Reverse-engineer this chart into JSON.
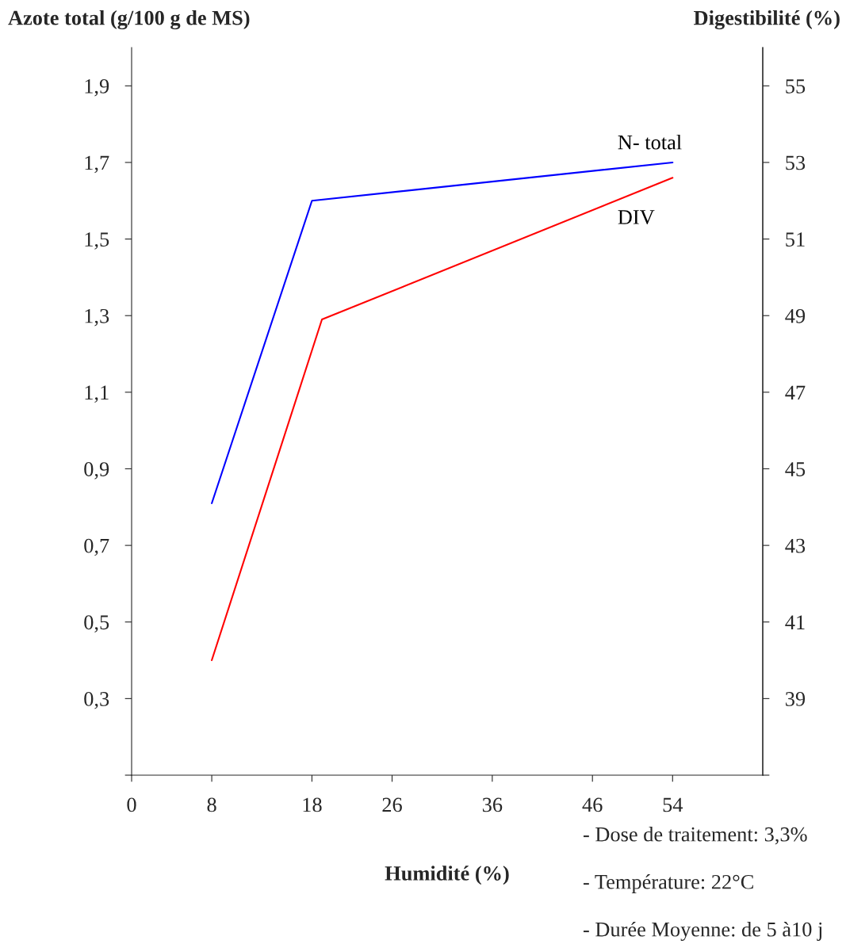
{
  "chart_data": {
    "type": "line",
    "xlabel": "Humidité (%)",
    "ylabel": "Azote total (g/100 g de MS)",
    "y2label": "Digestibilité (%)",
    "xlim": [
      0,
      63
    ],
    "xticks": [
      0,
      8,
      18,
      26,
      36,
      46,
      54
    ],
    "ylim": [
      0.1,
      2.0
    ],
    "yticks": [
      {
        "value": 0.1,
        "label": null
      },
      {
        "value": 0.3,
        "label": "0,3"
      },
      {
        "value": 0.5,
        "label": "0,5"
      },
      {
        "value": 0.7,
        "label": "0,7"
      },
      {
        "value": 0.9,
        "label": "0,9"
      },
      {
        "value": 1.1,
        "label": "1,1"
      },
      {
        "value": 1.3,
        "label": "1,3"
      },
      {
        "value": 1.5,
        "label": "1,5"
      },
      {
        "value": 1.7,
        "label": "1,7"
      },
      {
        "value": 1.9,
        "label": "1,9"
      }
    ],
    "y2lim": [
      37,
      56
    ],
    "y2ticks": [
      {
        "value": 37,
        "label": null
      },
      39,
      41,
      43,
      45,
      47,
      49,
      51,
      53,
      55
    ],
    "series": [
      {
        "name": "N- total",
        "color": "#0000ff",
        "x": [
          8,
          18,
          54
        ],
        "values": [
          0.81,
          1.6,
          1.7
        ]
      },
      {
        "name": "DIV",
        "color": "#ff0000",
        "axis": "y2",
        "x": [
          8,
          19,
          54
        ],
        "values": [
          40.0,
          48.9,
          52.6
        ]
      }
    ],
    "grid": false,
    "marker": "none",
    "line_style": "solid",
    "annotations": [
      "- Dose de traitement: 3,3%",
      "- Température: 22°C",
      "- Durée Moyenne: de 5 à10 j"
    ]
  }
}
